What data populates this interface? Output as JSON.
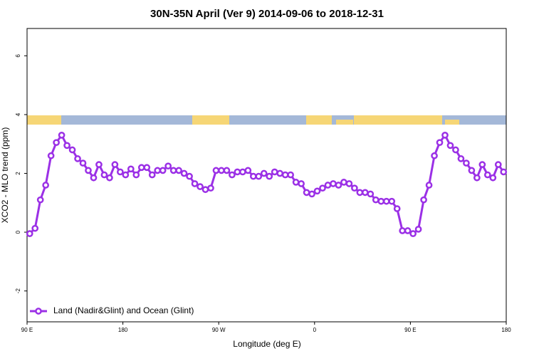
{
  "chart_data": {
    "type": "line",
    "title": "30N-35N April (Ver 9)   2014-09-06 to 2018-12-31",
    "x_label": "Longitude (deg E)",
    "y_label": "XCO2 - MLO trend (ppm)",
    "xlim": [
      90,
      540
    ],
    "ylim": [
      -3.05,
      6.93
    ],
    "xticks": [
      {
        "value": 90,
        "label": "90 E"
      },
      180,
      {
        "value": 270,
        "label": "90 W"
      },
      {
        "value": 360,
        "label": "0"
      },
      {
        "value": 450,
        "label": "90 E"
      },
      {
        "value": 540,
        "label": "180"
      }
    ],
    "yticks": [
      -2,
      0,
      2,
      4,
      6
    ],
    "legend": "bottom-left",
    "x": [
      92.5,
      97.5,
      102.5,
      107.5,
      112.5,
      117.5,
      122.5,
      127.5,
      132.5,
      137.5,
      142.5,
      147.5,
      152.5,
      157.5,
      162.5,
      167.5,
      172.5,
      177.5,
      182.5,
      187.5,
      192.5,
      197.5,
      202.5,
      207.5,
      212.5,
      217.5,
      222.5,
      227.5,
      232.5,
      237.5,
      242.5,
      247.5,
      252.5,
      257.5,
      262.5,
      267.5,
      272.5,
      277.5,
      282.5,
      287.5,
      292.5,
      297.5,
      302.5,
      307.5,
      312.5,
      317.5,
      322.5,
      327.5,
      332.5,
      337.5,
      342.5,
      347.5,
      352.5,
      357.5,
      362.5,
      367.5,
      372.5,
      377.5,
      382.5,
      387.5,
      392.5,
      397.5,
      402.5,
      407.5,
      412.5,
      417.5,
      422.5,
      427.5,
      432.5,
      437.5,
      442.5,
      447.5,
      452.5,
      457.5,
      462.5,
      467.5,
      472.5,
      477.5,
      482.5,
      487.5,
      492.5,
      497.5,
      502.5,
      507.5,
      512.5,
      517.5,
      522.5,
      527.5,
      532.5,
      537.5
    ],
    "series": [
      {
        "name": "Land (Nadir&Glint) and Ocean (Glint)",
        "color": "#9b30e6",
        "values": [
          -0.05,
          0.13,
          1.1,
          1.6,
          2.6,
          3.05,
          3.3,
          2.95,
          2.8,
          2.5,
          2.35,
          2.1,
          1.85,
          2.3,
          1.95,
          1.85,
          2.3,
          2.05,
          1.95,
          2.15,
          1.95,
          2.2,
          2.2,
          1.95,
          2.1,
          2.1,
          2.25,
          2.1,
          2.1,
          2.0,
          1.9,
          1.65,
          1.55,
          1.45,
          1.5,
          2.1,
          2.1,
          2.1,
          1.95,
          2.05,
          2.05,
          2.1,
          1.9,
          1.9,
          2.0,
          1.9,
          2.05,
          2.0,
          1.95,
          1.95,
          1.7,
          1.65,
          1.35,
          1.3,
          1.4,
          1.5,
          1.6,
          1.65,
          1.6,
          1.7,
          1.65,
          1.5,
          1.35,
          1.35,
          1.3,
          1.1,
          1.05,
          1.05,
          1.05,
          0.8,
          0.05,
          0.05,
          -0.05,
          0.1,
          1.1,
          1.6,
          2.6,
          3.05,
          3.3,
          2.95,
          2.8,
          2.5,
          2.35,
          2.1,
          1.85,
          2.3,
          1.95,
          1.85,
          2.3,
          2.05
        ]
      }
    ]
  }
}
